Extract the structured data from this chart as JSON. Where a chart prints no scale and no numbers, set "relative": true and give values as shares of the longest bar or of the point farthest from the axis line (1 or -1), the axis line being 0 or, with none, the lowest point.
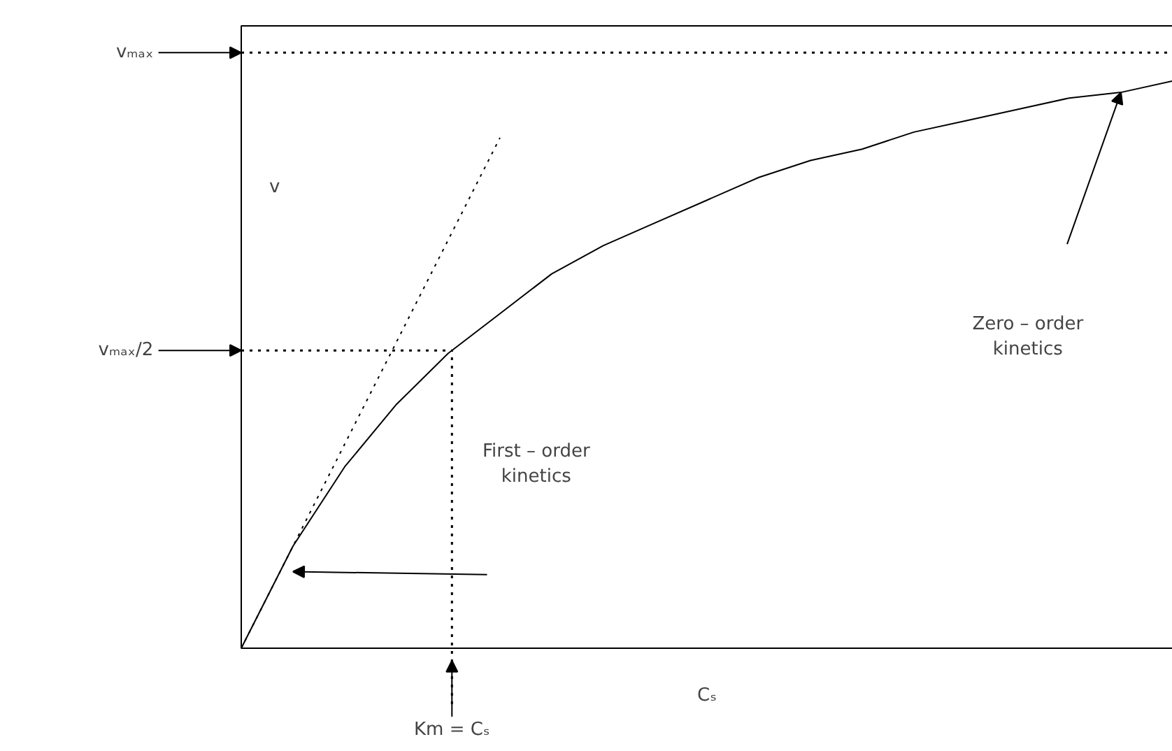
{
  "chart_data": {
    "type": "line",
    "relative": true,
    "xlabel": "Cₛ",
    "ylabel": "v",
    "categories": [
      null,
      null,
      null,
      null,
      null,
      null,
      null,
      null,
      null,
      null,
      null,
      null,
      null,
      null,
      null,
      null,
      null,
      null,
      null
    ],
    "series": [
      {
        "color": "#000000",
        "line_style": "solid",
        "values": [
          0,
          0.18,
          0.32,
          0.43,
          0.52,
          0.59,
          0.66,
          0.71,
          0.75,
          0.79,
          0.83,
          0.86,
          0.88,
          0.91,
          0.93,
          0.95,
          0.97,
          0.98,
          1.0
        ]
      },
      {
        "color": "#000000",
        "line_style": "dotted",
        "values": [
          0,
          0.18,
          0.36,
          0.54,
          0.72,
          0.9,
          null,
          null,
          null,
          null,
          null,
          null,
          null,
          null,
          null,
          null,
          null,
          null,
          null
        ]
      }
    ],
    "ref_lines": [
      {
        "axis": "y",
        "value": 1.05,
        "label": "vₘₐₓ",
        "line_style": "dotted"
      },
      {
        "axis": "y",
        "value": 0.525,
        "label": "vₘₐₓ/2",
        "line_style": "dotted"
      }
    ],
    "annotations": [
      "Km = Cₛ",
      "First – order\nkinetics",
      "Zero – order\nkinetics"
    ],
    "grid": false
  }
}
